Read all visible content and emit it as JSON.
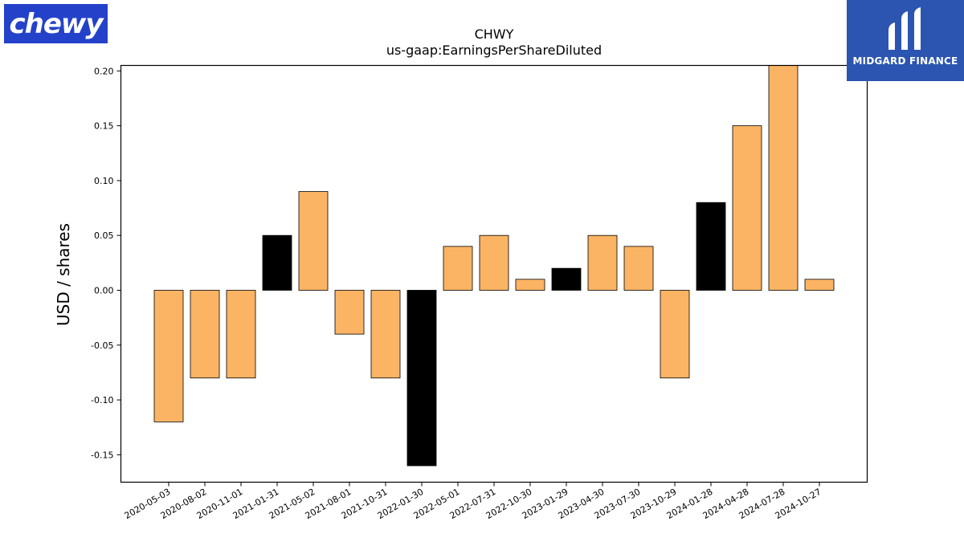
{
  "brand": {
    "logo_text": "chewy",
    "logo_color": "#2442c9"
  },
  "publisher": {
    "name": "MIDGARD FINANCE",
    "logo_color": "#2b55b0"
  },
  "colors": {
    "bar_default": "#fbb464",
    "bar_highlight": "#000000",
    "axis": "#000000"
  },
  "chart_data": {
    "type": "bar",
    "title": "CHWY",
    "subtitle": "us-gaap:EarningsPerShareDiluted",
    "xlabel": "",
    "ylabel": "USD / shares",
    "ylim": [
      -0.175,
      0.205
    ],
    "yticks": [
      "-0.15",
      "-0.10",
      "-0.05",
      "0.00",
      "0.05",
      "0.10",
      "0.15",
      "0.20"
    ],
    "grid": false,
    "categories": [
      "2020-05-03",
      "2020-08-02",
      "2020-11-01",
      "2021-01-31",
      "2021-05-02",
      "2021-08-01",
      "2021-10-31",
      "2022-01-30",
      "2022-05-01",
      "2022-07-31",
      "2022-10-30",
      "2023-01-29",
      "2023-04-30",
      "2023-07-30",
      "2023-10-29",
      "2024-01-28",
      "2024-04-28",
      "2024-07-28",
      "2024-10-27"
    ],
    "values": [
      -0.12,
      -0.08,
      -0.08,
      0.05,
      0.09,
      -0.04,
      -0.08,
      -0.16,
      0.04,
      0.05,
      0.01,
      0.02,
      0.05,
      0.04,
      -0.08,
      0.08,
      0.15,
      0.21,
      0.01
    ],
    "highlighted": [
      false,
      false,
      false,
      true,
      false,
      false,
      false,
      true,
      false,
      false,
      false,
      true,
      false,
      false,
      false,
      true,
      false,
      false,
      false
    ]
  }
}
